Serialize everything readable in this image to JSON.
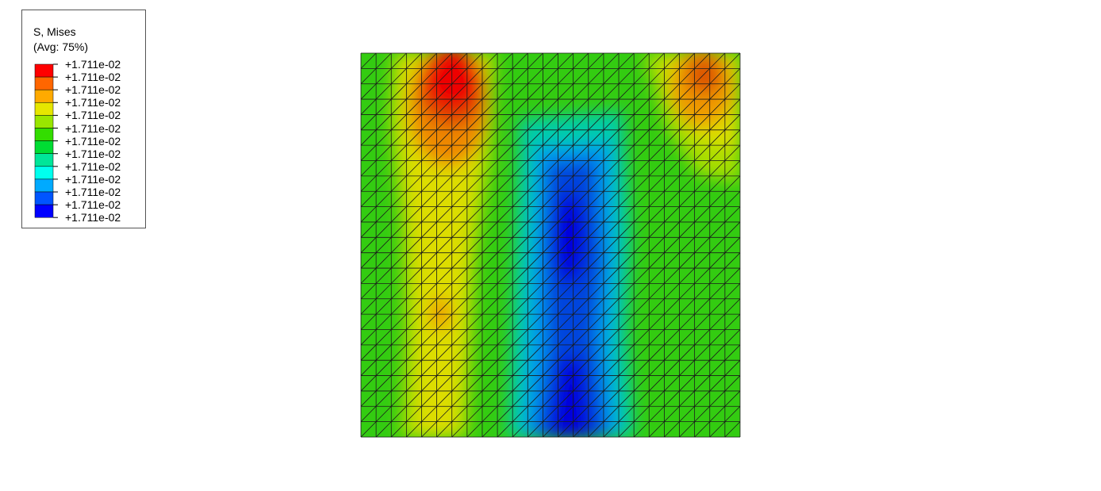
{
  "legend": {
    "title": "S, Mises",
    "subtitle": "(Avg: 75%)",
    "labels": [
      "+1.711e-02",
      "+1.711e-02",
      "+1.711e-02",
      "+1.711e-02",
      "+1.711e-02",
      "+1.711e-02",
      "+1.711e-02",
      "+1.711e-02",
      "+1.711e-02",
      "+1.711e-02",
      "+1.711e-02",
      "+1.711e-02",
      "+1.711e-02"
    ],
    "colors": [
      "#ff0000",
      "#ff6600",
      "#ffaa00",
      "#e6e600",
      "#99e600",
      "#33dd00",
      "#00dd33",
      "#00e699",
      "#00ffee",
      "#00aaff",
      "#0055ff",
      "#0000ff"
    ]
  },
  "mesh": {
    "rows": 25,
    "cols": 25,
    "element_type": "triangular"
  }
}
